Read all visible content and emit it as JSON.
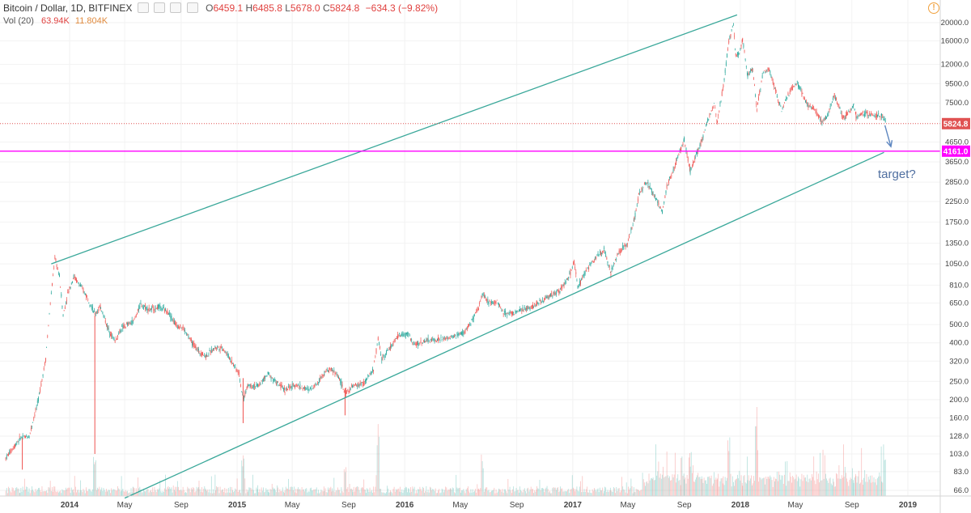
{
  "legend": {
    "symbol": "Bitcoin / Dollar, 1D, BITFINEX",
    "o_label": "O",
    "o_value": "6459.1",
    "h_label": "H",
    "h_value": "6485.8",
    "l_label": "L",
    "l_value": "5678.0",
    "c_label": "C",
    "c_value": "5824.8",
    "change": "−634.3 (−9.82%)",
    "volume_label": "Vol (20)",
    "volume_value": "63.94K",
    "volume_ma": "11.804K"
  },
  "colors": {
    "up": "#26a69a",
    "down": "#ef5350",
    "channel": "#3aa89a",
    "price_line": "#e05252",
    "support_line": "#ff00ff",
    "arrow": "#5d86c0",
    "annotation": "#4f6fa0"
  },
  "chart_data": {
    "type": "candlestick",
    "scale": "log",
    "ylim": [
      60,
      21000
    ],
    "y_ticks": [
      "20000.0",
      "16000.0",
      "12000.0",
      "9500.0",
      "7500.0",
      "4650.0",
      "3650.0",
      "2850.0",
      "2250.0",
      "1750.0",
      "1350.0",
      "1050.0",
      "810.0",
      "650.0",
      "500.0",
      "400.0",
      "320.0",
      "250.0",
      "200.0",
      "160.0",
      "128.0",
      "103.0",
      "83.0",
      "66.0"
    ],
    "x_ticks": [
      {
        "label": "2014",
        "date": "2014-01-01",
        "bold": true
      },
      {
        "label": "May",
        "date": "2014-05-01",
        "bold": false
      },
      {
        "label": "Sep",
        "date": "2014-09-01",
        "bold": false
      },
      {
        "label": "2015",
        "date": "2015-01-01",
        "bold": true
      },
      {
        "label": "May",
        "date": "2015-05-01",
        "bold": false
      },
      {
        "label": "Sep",
        "date": "2015-09-01",
        "bold": false
      },
      {
        "label": "2016",
        "date": "2016-01-01",
        "bold": true
      },
      {
        "label": "May",
        "date": "2016-05-01",
        "bold": false
      },
      {
        "label": "Sep",
        "date": "2016-09-01",
        "bold": false
      },
      {
        "label": "2017",
        "date": "2017-01-01",
        "bold": true
      },
      {
        "label": "May",
        "date": "2017-05-01",
        "bold": false
      },
      {
        "label": "Sep",
        "date": "2017-09-01",
        "bold": false
      },
      {
        "label": "2018",
        "date": "2018-01-01",
        "bold": true
      },
      {
        "label": "May",
        "date": "2018-05-01",
        "bold": false
      },
      {
        "label": "Sep",
        "date": "2018-09-01",
        "bold": false
      },
      {
        "label": "2019",
        "date": "2019-01-01",
        "bold": true
      }
    ],
    "price_path": [
      [
        "2013-08-15",
        98
      ],
      [
        "2013-09-15",
        125
      ],
      [
        "2013-10-05",
        128
      ],
      [
        "2013-10-25",
        200
      ],
      [
        "2013-11-10",
        330
      ],
      [
        "2013-11-20",
        650
      ],
      [
        "2013-11-30",
        1130
      ],
      [
        "2013-12-10",
        900
      ],
      [
        "2013-12-18",
        560
      ],
      [
        "2013-12-28",
        730
      ],
      [
        "2014-01-10",
        900
      ],
      [
        "2014-01-25",
        800
      ],
      [
        "2014-02-10",
        690
      ],
      [
        "2014-02-25",
        570
      ],
      [
        "2014-03-10",
        620
      ],
      [
        "2014-03-25",
        480
      ],
      [
        "2014-04-10",
        410
      ],
      [
        "2014-04-25",
        480
      ],
      [
        "2014-05-20",
        520
      ],
      [
        "2014-06-05",
        640
      ],
      [
        "2014-06-25",
        600
      ],
      [
        "2014-07-15",
        620
      ],
      [
        "2014-08-05",
        580
      ],
      [
        "2014-08-20",
        500
      ],
      [
        "2014-09-05",
        480
      ],
      [
        "2014-09-25",
        400
      ],
      [
        "2014-10-10",
        360
      ],
      [
        "2014-10-25",
        340
      ],
      [
        "2014-11-15",
        380
      ],
      [
        "2014-12-01",
        375
      ],
      [
        "2014-12-20",
        320
      ],
      [
        "2015-01-05",
        275
      ],
      [
        "2015-01-14",
        200
      ],
      [
        "2015-01-25",
        240
      ],
      [
        "2015-02-15",
        235
      ],
      [
        "2015-03-10",
        275
      ],
      [
        "2015-03-25",
        250
      ],
      [
        "2015-04-15",
        225
      ],
      [
        "2015-05-10",
        240
      ],
      [
        "2015-06-05",
        225
      ],
      [
        "2015-06-25",
        245
      ],
      [
        "2015-07-10",
        280
      ],
      [
        "2015-07-25",
        290
      ],
      [
        "2015-08-10",
        265
      ],
      [
        "2015-08-24",
        215
      ],
      [
        "2015-09-10",
        235
      ],
      [
        "2015-10-05",
        245
      ],
      [
        "2015-10-25",
        290
      ],
      [
        "2015-11-04",
        420
      ],
      [
        "2015-11-12",
        330
      ],
      [
        "2015-12-01",
        380
      ],
      [
        "2015-12-20",
        440
      ],
      [
        "2016-01-10",
        445
      ],
      [
        "2016-01-20",
        390
      ],
      [
        "2016-02-15",
        410
      ],
      [
        "2016-03-10",
        415
      ],
      [
        "2016-04-10",
        425
      ],
      [
        "2016-05-10",
        455
      ],
      [
        "2016-05-28",
        530
      ],
      [
        "2016-06-10",
        610
      ],
      [
        "2016-06-18",
        740
      ],
      [
        "2016-06-30",
        660
      ],
      [
        "2016-07-20",
        660
      ],
      [
        "2016-08-05",
        575
      ],
      [
        "2016-08-25",
        575
      ],
      [
        "2016-09-20",
        605
      ],
      [
        "2016-10-15",
        640
      ],
      [
        "2016-11-10",
        710
      ],
      [
        "2016-12-05",
        760
      ],
      [
        "2016-12-25",
        910
      ],
      [
        "2017-01-04",
        1080
      ],
      [
        "2017-01-12",
        790
      ],
      [
        "2017-02-01",
        980
      ],
      [
        "2017-02-25",
        1180
      ],
      [
        "2017-03-10",
        1240
      ],
      [
        "2017-03-25",
        940
      ],
      [
        "2017-04-10",
        1200
      ],
      [
        "2017-04-30",
        1350
      ],
      [
        "2017-05-15",
        1800
      ],
      [
        "2017-05-25",
        2450
      ],
      [
        "2017-06-10",
        2850
      ],
      [
        "2017-06-25",
        2500
      ],
      [
        "2017-07-15",
        1980
      ],
      [
        "2017-07-25",
        2700
      ],
      [
        "2017-08-10",
        3400
      ],
      [
        "2017-08-25",
        4300
      ],
      [
        "2017-09-01",
        4800
      ],
      [
        "2017-09-14",
        3250
      ],
      [
        "2017-09-25",
        3900
      ],
      [
        "2017-10-10",
        4800
      ],
      [
        "2017-10-20",
        5900
      ],
      [
        "2017-11-05",
        7300
      ],
      [
        "2017-11-12",
        6000
      ],
      [
        "2017-11-25",
        9200
      ],
      [
        "2017-12-07",
        16000
      ],
      [
        "2017-12-17",
        19500
      ],
      [
        "2017-12-22",
        13500
      ],
      [
        "2017-12-30",
        13800
      ],
      [
        "2018-01-06",
        16500
      ],
      [
        "2018-01-17",
        10500
      ],
      [
        "2018-01-28",
        11400
      ],
      [
        "2018-02-06",
        7000
      ],
      [
        "2018-02-20",
        11000
      ],
      [
        "2018-03-05",
        11300
      ],
      [
        "2018-03-20",
        8500
      ],
      [
        "2018-04-01",
        6800
      ],
      [
        "2018-04-15",
        8300
      ],
      [
        "2018-05-05",
        9700
      ],
      [
        "2018-05-25",
        7400
      ],
      [
        "2018-06-10",
        7000
      ],
      [
        "2018-06-28",
        5900
      ],
      [
        "2018-07-10",
        6500
      ],
      [
        "2018-07-25",
        8300
      ],
      [
        "2018-08-10",
        6500
      ],
      [
        "2018-08-15",
        6200
      ],
      [
        "2018-09-05",
        7300
      ],
      [
        "2018-09-10",
        6300
      ],
      [
        "2018-09-25",
        6600
      ],
      [
        "2018-10-15",
        6500
      ],
      [
        "2018-11-05",
        6450
      ],
      [
        "2018-11-14",
        5824.8
      ]
    ],
    "volume_peaks": [
      [
        "2014-02-25",
        0.45
      ],
      [
        "2015-01-14",
        0.55
      ],
      [
        "2015-08-24",
        0.35
      ],
      [
        "2015-11-04",
        0.95
      ],
      [
        "2016-06-18",
        0.5
      ],
      [
        "2017-09-14",
        0.5
      ],
      [
        "2017-12-07",
        0.75
      ],
      [
        "2018-02-06",
        0.8
      ],
      [
        "2018-11-14",
        0.45
      ]
    ],
    "volume_ylim": [
      0,
      1
    ],
    "channel_upper": [
      [
        "2013-11-22",
        1050
      ],
      [
        "2017-12-25",
        22000
      ]
    ],
    "channel_lower": [
      [
        "2014-05-01",
        60
      ],
      [
        "2018-11-10",
        4100
      ]
    ],
    "current_price": 5824.8,
    "current_price_label": "5824.8",
    "support_level": 4161.0,
    "support_label": "4161.0",
    "annotation": "target?",
    "arrow_from": [
      "2018-11-12",
      5700
    ],
    "arrow_to": [
      "2018-11-25",
      4400
    ]
  }
}
